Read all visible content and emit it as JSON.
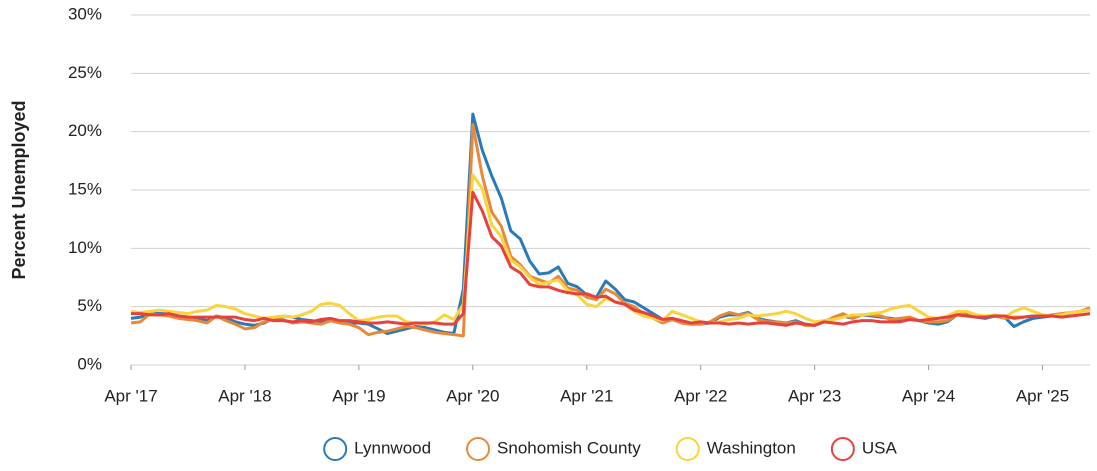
{
  "chart_data": {
    "type": "line",
    "y_label": "Percent Unemployed",
    "x": [
      "2017-04",
      "2017-05",
      "2017-06",
      "2017-07",
      "2017-08",
      "2017-09",
      "2017-10",
      "2017-11",
      "2017-12",
      "2018-01",
      "2018-02",
      "2018-03",
      "2018-04",
      "2018-05",
      "2018-06",
      "2018-07",
      "2018-08",
      "2018-09",
      "2018-10",
      "2018-11",
      "2018-12",
      "2019-01",
      "2019-02",
      "2019-03",
      "2019-04",
      "2019-05",
      "2019-06",
      "2019-07",
      "2019-08",
      "2019-09",
      "2019-10",
      "2019-11",
      "2019-12",
      "2020-01",
      "2020-02",
      "2020-03",
      "2020-04",
      "2020-05",
      "2020-06",
      "2020-07",
      "2020-08",
      "2020-09",
      "2020-10",
      "2020-11",
      "2020-12",
      "2021-01",
      "2021-02",
      "2021-03",
      "2021-04",
      "2021-05",
      "2021-06",
      "2021-07",
      "2021-08",
      "2021-09",
      "2021-10",
      "2021-11",
      "2021-12",
      "2022-01",
      "2022-02",
      "2022-03",
      "2022-04",
      "2022-05",
      "2022-06",
      "2022-07",
      "2022-08",
      "2022-09",
      "2022-10",
      "2022-11",
      "2022-12",
      "2023-01",
      "2023-02",
      "2023-03",
      "2023-04",
      "2023-05",
      "2023-06",
      "2023-07",
      "2023-08",
      "2023-09",
      "2023-10",
      "2023-11",
      "2023-12",
      "2024-01",
      "2024-02",
      "2024-03",
      "2024-04",
      "2024-05",
      "2024-06",
      "2024-07",
      "2024-08",
      "2024-09",
      "2024-10",
      "2024-11",
      "2024-12",
      "2025-01",
      "2025-02",
      "2025-03",
      "2025-04",
      "2025-05",
      "2025-06",
      "2025-07",
      "2025-08",
      "2025-09"
    ],
    "xticks": [
      {
        "value": "2017-04",
        "label": "Apr '17"
      },
      {
        "value": "2018-04",
        "label": "Apr '18"
      },
      {
        "value": "2019-04",
        "label": "Apr '19"
      },
      {
        "value": "2020-04",
        "label": "Apr '20"
      },
      {
        "value": "2021-04",
        "label": "Apr '21"
      },
      {
        "value": "2022-04",
        "label": "Apr '22"
      },
      {
        "value": "2023-04",
        "label": "Apr '23"
      },
      {
        "value": "2024-04",
        "label": "Apr '24"
      },
      {
        "value": "2025-04",
        "label": "Apr '25"
      }
    ],
    "ylim": [
      0,
      30
    ],
    "yticks": [
      {
        "value": 0,
        "label": "0%"
      },
      {
        "value": 5,
        "label": "5%"
      },
      {
        "value": 10,
        "label": "10%"
      },
      {
        "value": 15,
        "label": "15%"
      },
      {
        "value": 20,
        "label": "20%"
      },
      {
        "value": 25,
        "label": "25%"
      },
      {
        "value": 30,
        "label": "30%"
      }
    ],
    "grid": true,
    "legend": "bottom",
    "series": [
      {
        "name": "Lynnwood",
        "color": "#2a7ab9",
        "values": [
          4.0,
          4.1,
          4.5,
          4.4,
          4.4,
          4.2,
          4.1,
          4.0,
          3.8,
          4.2,
          4.0,
          3.7,
          3.5,
          3.4,
          3.6,
          4.0,
          4.2,
          4.1,
          3.9,
          3.8,
          3.7,
          3.9,
          3.7,
          3.6,
          3.6,
          3.5,
          3.1,
          2.7,
          2.9,
          3.1,
          3.3,
          3.2,
          3.0,
          2.8,
          2.7,
          6.5,
          21.5,
          18.4,
          16.2,
          14.3,
          11.5,
          10.8,
          8.9,
          7.8,
          7.9,
          8.4,
          7.0,
          6.7,
          6.0,
          5.8,
          7.2,
          6.5,
          5.6,
          5.4,
          4.9,
          4.4,
          3.9,
          4.0,
          3.6,
          3.5,
          3.5,
          3.6,
          4.1,
          4.3,
          4.3,
          4.5,
          4.0,
          3.8,
          3.7,
          3.6,
          3.8,
          3.5,
          3.4,
          3.8,
          3.9,
          4.2,
          4.0,
          4.3,
          4.2,
          4.1,
          4.0,
          3.9,
          4.1,
          3.8,
          3.6,
          3.5,
          3.7,
          4.3,
          4.4,
          4.1,
          4.0,
          4.2,
          4.1,
          3.3,
          3.7,
          4.0,
          4.1,
          4.2,
          4.2,
          4.5,
          4.6,
          4.8
        ]
      },
      {
        "name": "Snohomish County",
        "color": "#e8893a",
        "values": [
          3.6,
          3.7,
          4.4,
          4.3,
          4.2,
          4.0,
          3.9,
          3.8,
          3.6,
          4.2,
          3.8,
          3.5,
          3.1,
          3.2,
          3.7,
          3.9,
          3.9,
          3.6,
          3.7,
          3.6,
          3.5,
          3.8,
          3.6,
          3.5,
          3.2,
          2.6,
          2.8,
          2.9,
          3.1,
          3.3,
          3.2,
          3.0,
          2.8,
          2.7,
          2.6,
          2.5,
          20.6,
          16.2,
          13.1,
          11.9,
          9.3,
          8.6,
          7.6,
          7.3,
          7.0,
          7.6,
          6.6,
          6.4,
          5.8,
          5.6,
          6.5,
          6.1,
          5.3,
          5.0,
          4.4,
          4.0,
          3.6,
          3.9,
          3.6,
          3.5,
          3.5,
          3.7,
          4.2,
          4.5,
          4.3,
          4.4,
          3.9,
          3.7,
          3.7,
          3.6,
          3.7,
          3.4,
          3.4,
          3.7,
          4.1,
          4.4,
          4.0,
          4.3,
          4.3,
          4.2,
          3.9,
          4.0,
          4.1,
          3.8,
          3.7,
          3.7,
          3.8,
          4.3,
          4.5,
          4.2,
          4.1,
          4.2,
          4.0,
          4.1,
          4.1,
          4.2,
          4.2,
          4.3,
          4.4,
          4.5,
          4.6,
          4.9
        ]
      },
      {
        "name": "Washington",
        "color": "#f8d43e",
        "values": [
          4.6,
          4.5,
          4.6,
          4.7,
          4.6,
          4.5,
          4.4,
          4.6,
          4.7,
          5.1,
          5.0,
          4.8,
          4.4,
          4.2,
          4.0,
          4.1,
          4.2,
          4.1,
          4.3,
          4.6,
          5.2,
          5.3,
          5.1,
          4.4,
          3.8,
          3.9,
          4.1,
          4.2,
          4.2,
          3.7,
          3.6,
          3.5,
          3.7,
          4.3,
          3.9,
          5.2,
          16.3,
          15.1,
          12.0,
          11.0,
          9.0,
          8.4,
          7.5,
          6.9,
          7.1,
          7.3,
          6.4,
          6.0,
          5.2,
          5.0,
          5.7,
          5.4,
          5.2,
          4.6,
          4.2,
          4.0,
          3.8,
          4.6,
          4.3,
          4.0,
          3.7,
          3.6,
          3.7,
          3.9,
          4.0,
          4.3,
          4.2,
          4.3,
          4.4,
          4.6,
          4.4,
          4.0,
          3.7,
          3.8,
          3.9,
          4.1,
          4.3,
          4.3,
          4.4,
          4.5,
          4.8,
          5.0,
          5.1,
          4.6,
          4.1,
          4.0,
          4.2,
          4.6,
          4.6,
          4.3,
          4.2,
          4.3,
          4.1,
          4.6,
          4.9,
          4.6,
          4.3,
          4.2,
          4.3,
          4.5,
          4.6,
          4.7
        ]
      },
      {
        "name": "USA",
        "color": "#e8413c",
        "values": [
          4.4,
          4.4,
          4.3,
          4.3,
          4.4,
          4.2,
          4.1,
          4.1,
          4.1,
          4.1,
          4.1,
          4.1,
          3.9,
          3.8,
          4.0,
          3.8,
          3.8,
          3.7,
          3.8,
          3.7,
          3.9,
          4.0,
          3.8,
          3.8,
          3.7,
          3.6,
          3.6,
          3.7,
          3.6,
          3.5,
          3.6,
          3.6,
          3.6,
          3.5,
          3.5,
          4.4,
          14.8,
          13.2,
          11.0,
          10.2,
          8.4,
          7.9,
          6.9,
          6.7,
          6.7,
          6.4,
          6.2,
          6.1,
          6.1,
          5.8,
          5.9,
          5.4,
          5.2,
          4.7,
          4.5,
          4.2,
          3.9,
          4.0,
          3.8,
          3.6,
          3.7,
          3.6,
          3.6,
          3.5,
          3.6,
          3.5,
          3.6,
          3.6,
          3.5,
          3.4,
          3.6,
          3.5,
          3.4,
          3.7,
          3.6,
          3.5,
          3.7,
          3.8,
          3.8,
          3.7,
          3.7,
          3.7,
          3.9,
          3.8,
          3.9,
          4.0,
          4.1,
          4.3,
          4.2,
          4.1,
          4.1,
          4.2,
          4.2,
          4.0,
          4.1,
          4.2,
          4.2,
          4.2,
          4.1,
          4.2,
          4.3,
          4.4
        ]
      }
    ]
  }
}
